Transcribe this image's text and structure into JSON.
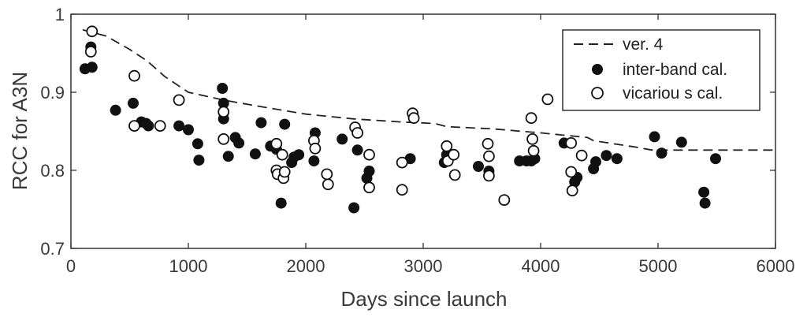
{
  "chart_data": {
    "type": "scatter",
    "title": "",
    "xlabel": "Days since launch",
    "ylabel": "RCC for A3N",
    "xlim": [
      0,
      6000
    ],
    "ylim": [
      0.7,
      1.0
    ],
    "x_ticks": [
      0,
      1000,
      2000,
      3000,
      4000,
      5000,
      6000
    ],
    "y_ticks": [
      0.7,
      0.8,
      0.9,
      1.0
    ],
    "x_tick_labels": [
      "0",
      "1000",
      "2000",
      "3000",
      "4000",
      "5000",
      "6000"
    ],
    "y_tick_labels": [
      "0.7",
      "0.8",
      "0.9",
      "1"
    ],
    "grid": false,
    "legend_position": "top-right",
    "colors": {
      "axis": "#333333",
      "filled": "#111111",
      "open_fill": "#ffffff",
      "line": "#222222"
    },
    "series": [
      {
        "name": "ver.  4",
        "style": "dashed-line",
        "points": [
          [
            100,
            0.98
          ],
          [
            300,
            0.972
          ],
          [
            500,
            0.955
          ],
          [
            650,
            0.94
          ],
          [
            800,
            0.92
          ],
          [
            1000,
            0.9
          ],
          [
            1300,
            0.89
          ],
          [
            1600,
            0.882
          ],
          [
            2000,
            0.872
          ],
          [
            2400,
            0.866
          ],
          [
            2800,
            0.862
          ],
          [
            3100,
            0.86
          ],
          [
            3200,
            0.856
          ],
          [
            3600,
            0.853
          ],
          [
            4000,
            0.848
          ],
          [
            4400,
            0.842
          ],
          [
            4450,
            0.838
          ],
          [
            4800,
            0.83
          ],
          [
            4950,
            0.826
          ],
          [
            5200,
            0.826
          ],
          [
            6000,
            0.826
          ]
        ]
      },
      {
        "name": "inter-band  cal.",
        "style": "filled-circle",
        "points": [
          [
            120,
            0.93
          ],
          [
            170,
            0.958
          ],
          [
            180,
            0.932
          ],
          [
            380,
            0.877
          ],
          [
            530,
            0.886
          ],
          [
            600,
            0.862
          ],
          [
            640,
            0.86
          ],
          [
            660,
            0.857
          ],
          [
            920,
            0.857
          ],
          [
            1000,
            0.852
          ],
          [
            1080,
            0.834
          ],
          [
            1090,
            0.813
          ],
          [
            1290,
            0.905
          ],
          [
            1300,
            0.886
          ],
          [
            1300,
            0.874
          ],
          [
            1300,
            0.866
          ],
          [
            1340,
            0.818
          ],
          [
            1400,
            0.842
          ],
          [
            1430,
            0.835
          ],
          [
            1570,
            0.821
          ],
          [
            1620,
            0.861
          ],
          [
            1700,
            0.831
          ],
          [
            1750,
            0.827
          ],
          [
            1790,
            0.758
          ],
          [
            1820,
            0.859
          ],
          [
            1880,
            0.81
          ],
          [
            1900,
            0.817
          ],
          [
            1940,
            0.82
          ],
          [
            2070,
            0.812
          ],
          [
            2080,
            0.848
          ],
          [
            2310,
            0.84
          ],
          [
            2410,
            0.752
          ],
          [
            2440,
            0.826
          ],
          [
            2520,
            0.79
          ],
          [
            2540,
            0.799
          ],
          [
            2890,
            0.815
          ],
          [
            3180,
            0.81
          ],
          [
            3200,
            0.82
          ],
          [
            3470,
            0.805
          ],
          [
            3560,
            0.799
          ],
          [
            3820,
            0.812
          ],
          [
            3880,
            0.812
          ],
          [
            3920,
            0.812
          ],
          [
            3950,
            0.815
          ],
          [
            4200,
            0.835
          ],
          [
            4290,
            0.785
          ],
          [
            4310,
            0.791
          ],
          [
            4450,
            0.802
          ],
          [
            4470,
            0.811
          ],
          [
            4560,
            0.819
          ],
          [
            4650,
            0.815
          ],
          [
            4970,
            0.843
          ],
          [
            5030,
            0.822
          ],
          [
            5200,
            0.836
          ],
          [
            5390,
            0.772
          ],
          [
            5400,
            0.758
          ],
          [
            5490,
            0.815
          ]
        ]
      },
      {
        "name": "vicariou s  cal.",
        "style": "open-circle",
        "points": [
          [
            180,
            0.978
          ],
          [
            170,
            0.952
          ],
          [
            540,
            0.921
          ],
          [
            540,
            0.857
          ],
          [
            760,
            0.857
          ],
          [
            920,
            0.89
          ],
          [
            1300,
            0.875
          ],
          [
            1300,
            0.84
          ],
          [
            1750,
            0.834
          ],
          [
            1750,
            0.8
          ],
          [
            1760,
            0.795
          ],
          [
            1800,
            0.82
          ],
          [
            1810,
            0.79
          ],
          [
            1820,
            0.798
          ],
          [
            2070,
            0.838
          ],
          [
            2080,
            0.828
          ],
          [
            2180,
            0.795
          ],
          [
            2190,
            0.782
          ],
          [
            2420,
            0.855
          ],
          [
            2440,
            0.848
          ],
          [
            2540,
            0.82
          ],
          [
            2540,
            0.778
          ],
          [
            2820,
            0.81
          ],
          [
            2820,
            0.775
          ],
          [
            2910,
            0.873
          ],
          [
            2920,
            0.867
          ],
          [
            3200,
            0.831
          ],
          [
            3210,
            0.812
          ],
          [
            3260,
            0.82
          ],
          [
            3270,
            0.794
          ],
          [
            3550,
            0.834
          ],
          [
            3560,
            0.818
          ],
          [
            3560,
            0.793
          ],
          [
            3690,
            0.762
          ],
          [
            3920,
            0.867
          ],
          [
            3930,
            0.84
          ],
          [
            3940,
            0.825
          ],
          [
            4060,
            0.891
          ],
          [
            4260,
            0.835
          ],
          [
            4260,
            0.798
          ],
          [
            4270,
            0.774
          ],
          [
            4350,
            0.819
          ]
        ]
      }
    ]
  }
}
